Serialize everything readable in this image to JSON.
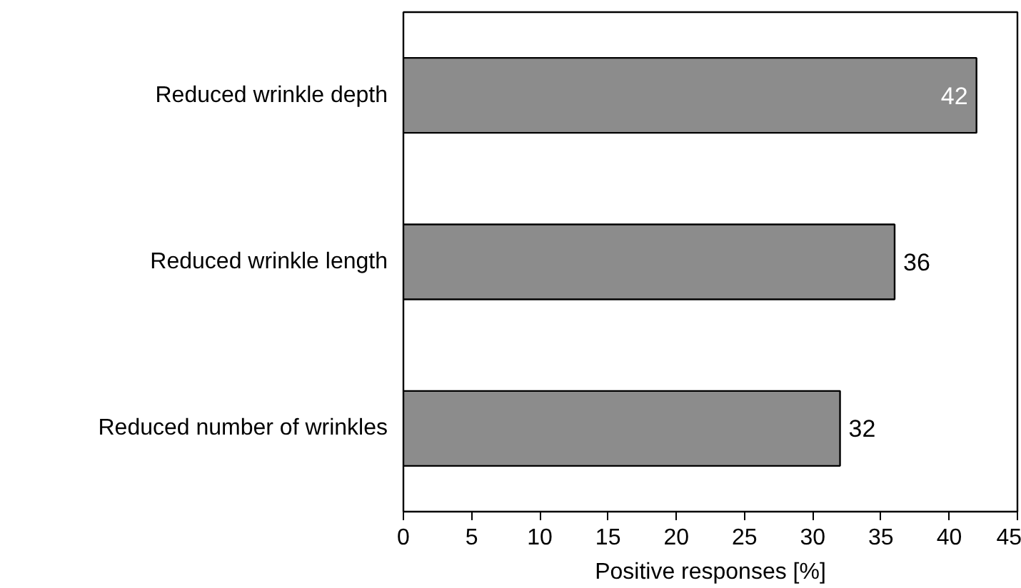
{
  "chart_data": {
    "type": "bar",
    "orientation": "horizontal",
    "categories": [
      "Reduced wrinkle depth",
      "Reduced wrinkle length",
      "Reduced number of wrinkles"
    ],
    "values": [
      42,
      36,
      32
    ],
    "color": "#8c8c8c",
    "xlabel": "Positive responses [%]",
    "xlim": [
      0,
      45
    ],
    "xticks": [
      0,
      5,
      10,
      15,
      20,
      25,
      30,
      35,
      40,
      45
    ],
    "data_labels": true,
    "grid": false
  }
}
